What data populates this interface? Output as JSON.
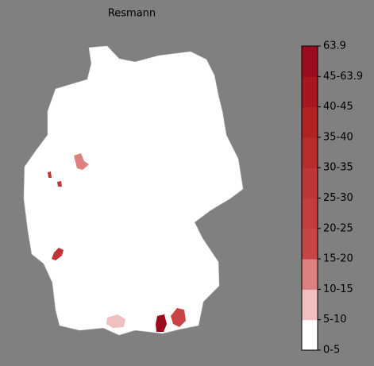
{
  "title": "Resmann",
  "legend": {
    "labels": [
      "0-5",
      "5-10",
      "10-15",
      "15-20",
      "20-25",
      "25-30",
      "30-35",
      "35-40",
      "40-45",
      "45-63.9",
      "63.9"
    ],
    "colors": [
      "#ffffff",
      "#f0c0c0",
      "#dc8080",
      "#c94444",
      "#c43c3c",
      "#bf3434",
      "#b92c2c",
      "#b22222",
      "#a8161f",
      "#9b0a1d"
    ]
  }
}
